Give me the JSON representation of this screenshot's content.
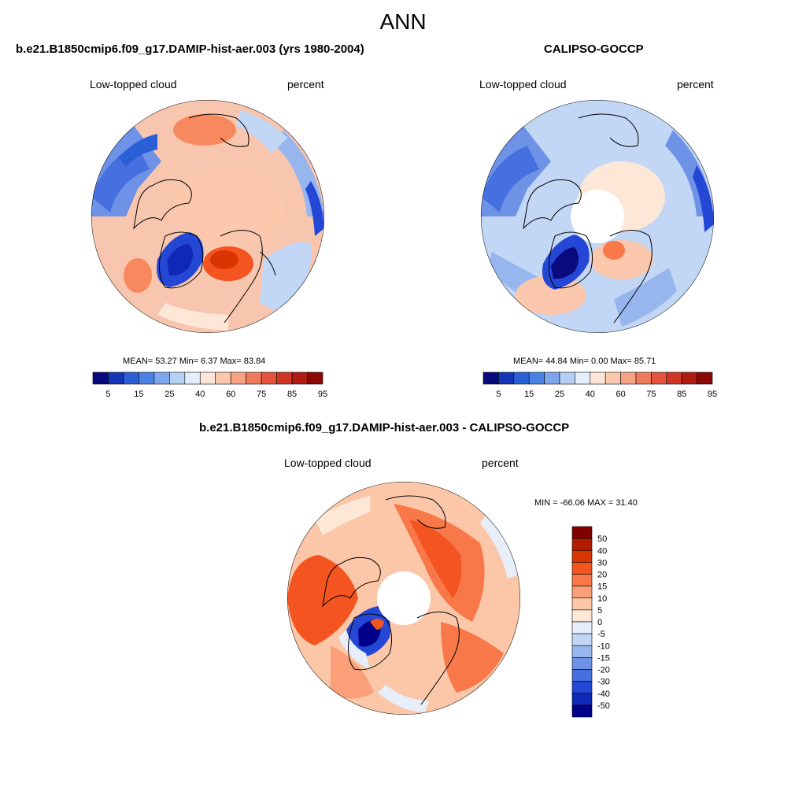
{
  "page": {
    "title": "ANN"
  },
  "panels": [
    {
      "title": "b.e21.B1850cmip6.f09_g17.DAMIP-hist-aer.003 (yrs 1980-2004)",
      "left_label": "Low-topped cloud",
      "right_label": "percent",
      "stats": "MEAN=  53.27  Min=   6.37  Max=  83.84",
      "colorbar": {
        "labels": [
          "5",
          "15",
          "25",
          "40",
          "60",
          "75",
          "85",
          "95"
        ],
        "colors": [
          "#0a0a7f",
          "#1535b8",
          "#2a5fd8",
          "#4a82e3",
          "#7ea6ec",
          "#b6cff5",
          "#e4eefb",
          "#fde6d8",
          "#fbc7ad",
          "#f6a283",
          "#ef7a5c",
          "#e4533c",
          "#cf3524",
          "#b01c10",
          "#8b0a05"
        ]
      }
    },
    {
      "title": "CALIPSO-GOCCP",
      "left_label": "Low-topped cloud",
      "right_label": "percent",
      "stats": "MEAN=  44.84  Min=   0.00  Max=  85.71",
      "colorbar": {
        "labels": [
          "5",
          "15",
          "25",
          "40",
          "60",
          "75",
          "85",
          "95"
        ],
        "colors": [
          "#0a0a7f",
          "#1535b8",
          "#2a5fd8",
          "#4a82e3",
          "#7ea6ec",
          "#b6cff5",
          "#e4eefb",
          "#fde6d8",
          "#fbc7ad",
          "#f6a283",
          "#ef7a5c",
          "#e4533c",
          "#cf3524",
          "#b01c10",
          "#8b0a05"
        ]
      }
    },
    {
      "title": "b.e21.B1850cmip6.f09_g17.DAMIP-hist-aer.003 - CALIPSO-GOCCP",
      "left_label": "Low-topped cloud",
      "right_label": "percent",
      "stats": "MIN = -66.06 MAX =  31.40",
      "colorbar": {
        "labels": [
          "50",
          "40",
          "30",
          "20",
          "15",
          "10",
          "5",
          "0",
          "-5",
          "-10",
          "-15",
          "-20",
          "-30",
          "-40",
          "-50"
        ],
        "colors": [
          "#800000",
          "#b31c00",
          "#d83500",
          "#f35420",
          "#f8784a",
          "#fa9f78",
          "#fcc7a8",
          "#fde8d8",
          "#e7eefa",
          "#c2d6f6",
          "#98b6ee",
          "#6e93e6",
          "#4670df",
          "#2447d6",
          "#1028b8",
          "#00008a"
        ]
      }
    }
  ]
}
